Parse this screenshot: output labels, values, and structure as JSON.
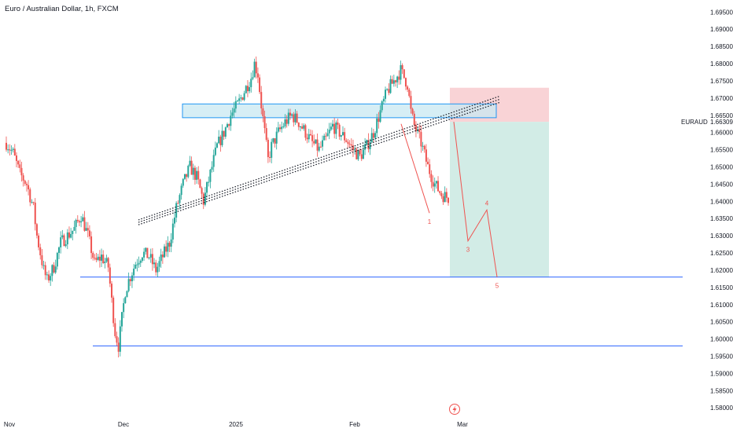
{
  "header": {
    "title": "Euro / Australian Dollar, 1h, FXCM"
  },
  "chart_data": {
    "type": "candlestick",
    "title": "Euro / Australian Dollar, 1h, FXCM",
    "symbol_tag": "EURAUD",
    "last_price": "1.66309",
    "x_ticks": [
      "Nov",
      "Dec",
      "2025",
      "Feb",
      "Mar"
    ],
    "y_ticks": [
      "1.69500",
      "1.69000",
      "1.68500",
      "1.68000",
      "1.67500",
      "1.67000",
      "1.66500",
      "1.66000",
      "1.65500",
      "1.65000",
      "1.64500",
      "1.64000",
      "1.63500",
      "1.63000",
      "1.62500",
      "1.62000",
      "1.61500",
      "1.61000",
      "1.60500",
      "1.60000",
      "1.59500",
      "1.59000",
      "1.58500",
      "1.58000"
    ],
    "ylim": [
      1.578,
      1.6985
    ],
    "x_domain_days": [
      0,
      130
    ],
    "grid": false,
    "price_path": [
      [
        0,
        1.657
      ],
      [
        2,
        1.654
      ],
      [
        4,
        1.648
      ],
      [
        6,
        1.645
      ],
      [
        8,
        1.638
      ],
      [
        9,
        1.63
      ],
      [
        10,
        1.625
      ],
      [
        11,
        1.62
      ],
      [
        12,
        1.617
      ],
      [
        14,
        1.621
      ],
      [
        16,
        1.628
      ],
      [
        18,
        1.63
      ],
      [
        20,
        1.632
      ],
      [
        22,
        1.636
      ],
      [
        24,
        1.63
      ],
      [
        26,
        1.622
      ],
      [
        28,
        1.624
      ],
      [
        30,
        1.621
      ],
      [
        31,
        1.611
      ],
      [
        32,
        1.602
      ],
      [
        33,
        1.598
      ],
      [
        34,
        1.606
      ],
      [
        35,
        1.614
      ],
      [
        36,
        1.617
      ],
      [
        38,
        1.622
      ],
      [
        40,
        1.625
      ],
      [
        42,
        1.624
      ],
      [
        44,
        1.62
      ],
      [
        46,
        1.624
      ],
      [
        48,
        1.628
      ],
      [
        50,
        1.638
      ],
      [
        52,
        1.645
      ],
      [
        54,
        1.65
      ],
      [
        56,
        1.647
      ],
      [
        58,
        1.64
      ],
      [
        60,
        1.648
      ],
      [
        62,
        1.656
      ],
      [
        64,
        1.66
      ],
      [
        66,
        1.665
      ],
      [
        68,
        1.668
      ],
      [
        70,
        1.672
      ],
      [
        72,
        1.676
      ],
      [
        73,
        1.68
      ],
      [
        74,
        1.677
      ],
      [
        75,
        1.668
      ],
      [
        76,
        1.66
      ],
      [
        77,
        1.652
      ],
      [
        78,
        1.656
      ],
      [
        80,
        1.66
      ],
      [
        82,
        1.663
      ],
      [
        84,
        1.665
      ],
      [
        86,
        1.663
      ],
      [
        88,
        1.66
      ],
      [
        90,
        1.657
      ],
      [
        92,
        1.655
      ],
      [
        94,
        1.658
      ],
      [
        96,
        1.662
      ],
      [
        98,
        1.66
      ],
      [
        100,
        1.658
      ],
      [
        102,
        1.655
      ],
      [
        104,
        1.653
      ],
      [
        106,
        1.656
      ],
      [
        108,
        1.66
      ],
      [
        110,
        1.666
      ],
      [
        112,
        1.672
      ],
      [
        114,
        1.675
      ],
      [
        116,
        1.678
      ],
      [
        118,
        1.674
      ],
      [
        119,
        1.666
      ],
      [
        120,
        1.662
      ],
      [
        122,
        1.657
      ],
      [
        124,
        1.65
      ],
      [
        126,
        1.645
      ],
      [
        128,
        1.642
      ],
      [
        130,
        1.641
      ]
    ],
    "key_levels": [
      1.618,
      1.598
    ],
    "resistance_zone": [
      1.6643,
      1.6683
    ],
    "rising_channel_lines": [
      {
        "from": [
          1.6346
        ],
        "to": [
          1.6706
        ]
      },
      {
        "from": [
          1.6339
        ],
        "to": [
          1.6697
        ]
      },
      {
        "from": [
          1.6332
        ],
        "to": [
          1.6688
        ]
      }
    ],
    "position": {
      "entry": 1.6631,
      "stop": 1.673,
      "target": 1.618
    },
    "wave_points": [
      {
        "label": "1",
        "price": 1.6366
      },
      {
        "label": "",
        "price": 1.6631
      },
      {
        "label": "3",
        "price": 1.6285
      },
      {
        "label": "4",
        "price": 1.6375
      },
      {
        "label": "5",
        "price": 1.618
      }
    ],
    "colors": {
      "up_candle": "#26a69a",
      "down_candle": "#ef5350",
      "level_line": "#2962ff",
      "zone_fill": "#c8e8f2",
      "zone_border": "#2196f3",
      "channel_line": "#131722",
      "stop_fill": "#f9d3d6",
      "target_fill": "#d2ece6",
      "wave_line": "#ef5350",
      "axis_text": "#131722",
      "price_tag_text": "#131722"
    }
  }
}
